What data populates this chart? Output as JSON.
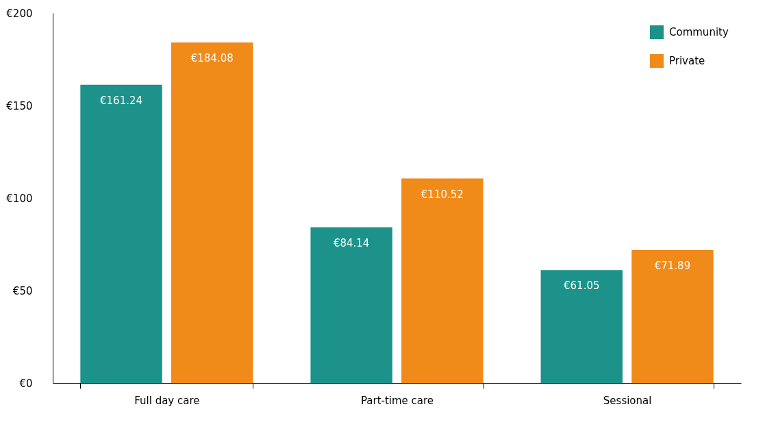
{
  "chart_data": {
    "type": "bar",
    "categories": [
      "Full day care",
      "Part-time care",
      "Sessional"
    ],
    "series": [
      {
        "name": "Community",
        "color": "#1c928a",
        "values": [
          161.24,
          84.14,
          61.05
        ],
        "value_labels": [
          "€161.24",
          "€84.14",
          "€61.05"
        ]
      },
      {
        "name": "Private",
        "color": "#f08a18",
        "values": [
          184.08,
          110.52,
          71.89
        ],
        "value_labels": [
          "€184.08",
          "€110.52",
          "€71.89"
        ]
      }
    ],
    "ylim": [
      0,
      200
    ],
    "yticks": [
      {
        "value": 0,
        "label": "€0"
      },
      {
        "value": 50,
        "label": "€50"
      },
      {
        "value": 100,
        "label": "€100"
      },
      {
        "value": 150,
        "label": "€150"
      },
      {
        "value": 200,
        "label": "€200"
      }
    ],
    "grid": false,
    "legend": "top right"
  }
}
